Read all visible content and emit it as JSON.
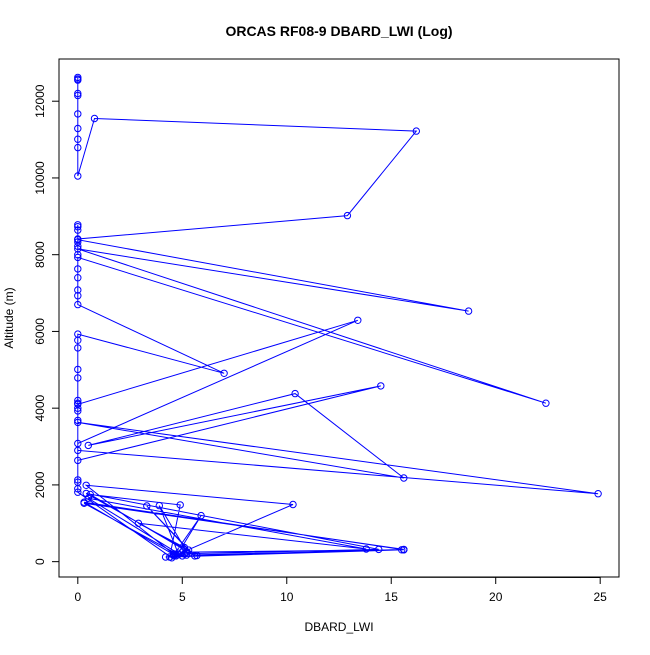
{
  "chart_data": {
    "type": "line",
    "title": "ORCAS RF08-9 DBARD_LWI (Log)",
    "xlabel": "DBARD_LWI",
    "ylabel": "Altitude (m)",
    "xlim": [
      -0.9,
      25.9
    ],
    "ylim": [
      -400,
      13100
    ],
    "x_ticks": [
      0,
      5,
      10,
      15,
      20,
      25
    ],
    "y_ticks": [
      0,
      2000,
      4000,
      6000,
      8000,
      10000,
      12000
    ],
    "grid": false,
    "legend": "none",
    "line_color": "#0000ff",
    "marker": "open-circle",
    "series": [
      {
        "x": [
          0,
          0,
          0,
          0,
          0,
          0,
          0,
          0,
          0,
          0,
          0.8,
          16.2,
          12.9,
          0,
          0,
          0,
          0,
          0,
          0,
          0,
          0,
          18.7,
          0,
          22.4,
          0,
          0,
          0,
          0,
          0,
          0,
          7.0,
          0,
          0,
          0,
          0,
          13.4,
          0,
          0,
          0,
          0,
          0,
          0,
          0,
          0,
          0,
          14.5,
          0.5,
          10.4,
          15.6,
          0,
          24.9,
          0,
          0,
          0,
          0,
          0,
          4.5,
          5.1,
          4.6,
          10.3,
          0.4,
          4.7,
          5.3,
          3.3,
          5.6,
          0.6,
          4.9,
          4.4,
          15.6,
          0.3,
          4.6,
          5.9,
          4.8,
          3.9,
          5.1,
          2.9,
          13.8,
          0.5,
          5.0,
          4.6,
          14.4,
          0.4,
          5.7,
          15.6,
          0.3,
          4.8,
          5.2,
          15.5,
          4.2,
          5.2,
          15.6
        ],
        "y": [
          12620,
          12580,
          12550,
          12200,
          12150,
          11670,
          11290,
          11010,
          10790,
          10050,
          11550,
          11220,
          9020,
          8410,
          8330,
          8220,
          8000,
          8780,
          8730,
          8640,
          8390,
          6530,
          8150,
          4130,
          7930,
          7630,
          7400,
          7080,
          6930,
          6700,
          4910,
          5930,
          5770,
          5570,
          4100,
          6290,
          3080,
          5010,
          4790,
          4200,
          4130,
          4000,
          3930,
          3680,
          2640,
          4580,
          3030,
          4380,
          2180,
          3630,
          1770,
          2900,
          2130,
          2070,
          1900,
          1810,
          100,
          200,
          150,
          1490,
          1990,
          150,
          300,
          1450,
          150,
          1750,
          1480,
          120,
          310,
          1550,
          180,
          1200,
          220,
          1460,
          370,
          1000,
          330,
          1650,
          150,
          200,
          320,
          1780,
          160,
          320,
          1520,
          180,
          250,
          310,
          120,
          170,
          310
        ]
      }
    ]
  }
}
